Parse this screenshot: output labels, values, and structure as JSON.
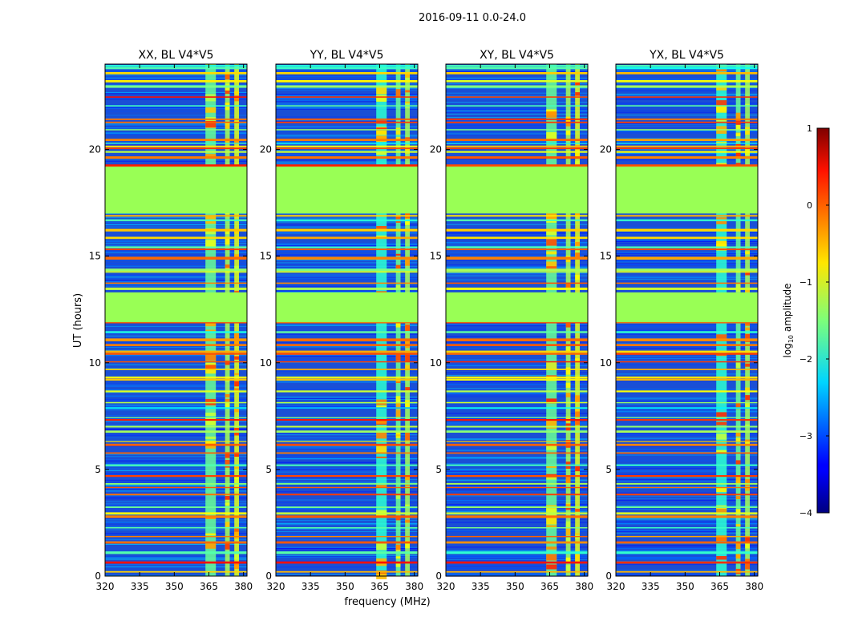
{
  "chart_data": {
    "type": "heatmap",
    "title": "2016-09-11 0.0-24.0",
    "xlabel": "frequency (MHz)",
    "ylabel": "UT (hours)",
    "xlim": [
      320,
      381.5
    ],
    "ylim": [
      0,
      24
    ],
    "xticks": [
      320,
      335,
      350,
      365,
      380
    ],
    "yticks": [
      0,
      5,
      10,
      15,
      20
    ],
    "panels": [
      {
        "title": "XX, BL V4*V5"
      },
      {
        "title": "YY, BL V4*V5"
      },
      {
        "title": "XY, BL V4*V5"
      },
      {
        "title": "YX, BL V4*V5"
      }
    ],
    "flagged_ranges_hours": [
      [
        11.9,
        13.3
      ],
      [
        17.0,
        19.2
      ]
    ],
    "rfi_bands_mhz": [
      [
        363.5,
        368.0
      ],
      [
        372.0,
        374.0
      ],
      [
        376.0,
        378.0
      ]
    ],
    "colorbar": {
      "label_prefix": "log",
      "label_sub": "10",
      "label_suffix": " amplitude",
      "range": [
        -4,
        1
      ],
      "ticks": [
        "1",
        "0",
        "−1",
        "−2",
        "−3",
        "−4"
      ],
      "colormap": "jet",
      "flag_color": "#99ff55"
    }
  }
}
